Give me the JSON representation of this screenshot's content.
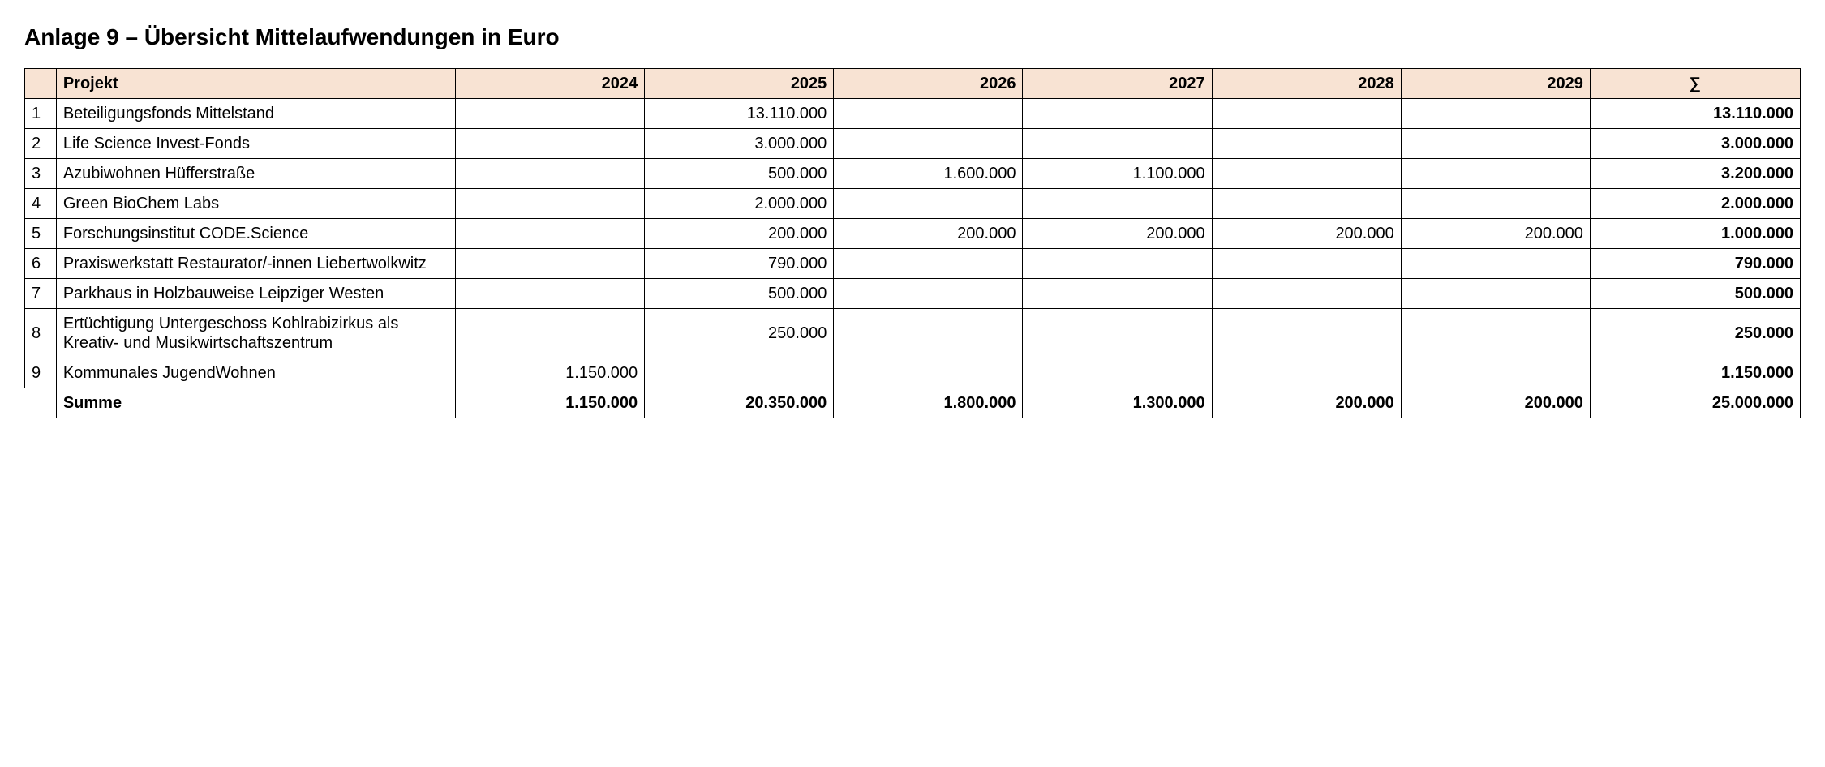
{
  "title": "Anlage 9 – Übersicht Mittelaufwendungen in Euro",
  "table": {
    "type": "table",
    "header_bg": "#f8e3d3",
    "border_color": "#000000",
    "columns": {
      "project_label": "Projekt",
      "years": [
        "2024",
        "2025",
        "2026",
        "2027",
        "2028",
        "2029"
      ],
      "sum_label": "∑"
    },
    "rows": [
      {
        "idx": "1",
        "project": "Beteiligungsfonds Mittelstand",
        "y2024": "",
        "y2025": "13.110.000",
        "y2026": "",
        "y2027": "",
        "y2028": "",
        "y2029": "",
        "sum": "13.110.000"
      },
      {
        "idx": "2",
        "project": "Life Science Invest-Fonds",
        "y2024": "",
        "y2025": "3.000.000",
        "y2026": "",
        "y2027": "",
        "y2028": "",
        "y2029": "",
        "sum": "3.000.000"
      },
      {
        "idx": "3",
        "project": "Azubiwohnen Hüfferstraße",
        "y2024": "",
        "y2025": "500.000",
        "y2026": "1.600.000",
        "y2027": "1.100.000",
        "y2028": "",
        "y2029": "",
        "sum": "3.200.000"
      },
      {
        "idx": "4",
        "project": "Green BioChem Labs",
        "y2024": "",
        "y2025": "2.000.000",
        "y2026": "",
        "y2027": "",
        "y2028": "",
        "y2029": "",
        "sum": "2.000.000"
      },
      {
        "idx": "5",
        "project": "Forschungsinstitut CODE.Science",
        "y2024": "",
        "y2025": "200.000",
        "y2026": "200.000",
        "y2027": "200.000",
        "y2028": "200.000",
        "y2029": "200.000",
        "sum": "1.000.000"
      },
      {
        "idx": "6",
        "project": "Praxiswerkstatt Restaurator/-innen Liebertwolkwitz",
        "y2024": "",
        "y2025": "790.000",
        "y2026": "",
        "y2027": "",
        "y2028": "",
        "y2029": "",
        "sum": "790.000"
      },
      {
        "idx": "7",
        "project": "Parkhaus in Holzbauweise Leipziger Westen",
        "y2024": "",
        "y2025": "500.000",
        "y2026": "",
        "y2027": "",
        "y2028": "",
        "y2029": "",
        "sum": "500.000"
      },
      {
        "idx": "8",
        "project": "Ertüchtigung Untergeschoss Kohlrabizirkus als Kreativ- und Musikwirtschaftszentrum",
        "y2024": "",
        "y2025": "250.000",
        "y2026": "",
        "y2027": "",
        "y2028": "",
        "y2029": "",
        "sum": "250.000"
      },
      {
        "idx": "9",
        "project": "Kommunales JugendWohnen",
        "y2024": "1.150.000",
        "y2025": "",
        "y2026": "",
        "y2027": "",
        "y2028": "",
        "y2029": "",
        "sum": "1.150.000"
      }
    ],
    "footer": {
      "label": "Summe",
      "y2024": "1.150.000",
      "y2025": "20.350.000",
      "y2026": "1.800.000",
      "y2027": "1.300.000",
      "y2028": "200.000",
      "y2029": "200.000",
      "sum": "25.000.000"
    }
  }
}
